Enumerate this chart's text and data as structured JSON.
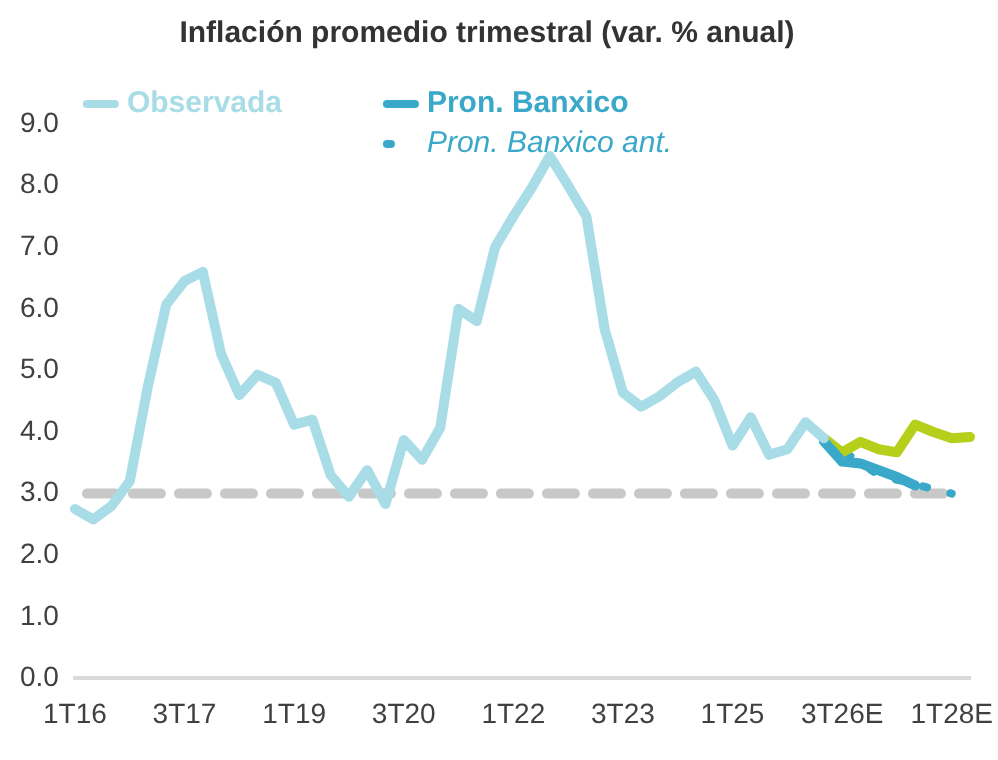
{
  "chart_data": {
    "type": "line",
    "title": "Inflación promedio trimestral (var. % anual)",
    "categories": [
      "1T16",
      null,
      null,
      null,
      null,
      null,
      "3T17",
      null,
      null,
      null,
      null,
      null,
      "1T19",
      null,
      null,
      null,
      null,
      null,
      "3T20",
      null,
      null,
      null,
      null,
      null,
      "1T22",
      null,
      null,
      null,
      null,
      null,
      "3T23",
      null,
      null,
      null,
      null,
      null,
      "1T25",
      null,
      null,
      null,
      null,
      null,
      "3T26E",
      null,
      null,
      null,
      null,
      null,
      "1T28E",
      null
    ],
    "ylim": [
      0,
      9
    ],
    "yticks": [
      {
        "value": 0,
        "label": "0.0"
      },
      {
        "value": 1,
        "label": "1.0"
      },
      {
        "value": 2,
        "label": "2.0"
      },
      {
        "value": 3,
        "label": "3.0"
      },
      {
        "value": 4,
        "label": "4.0"
      },
      {
        "value": 5,
        "label": "5.0"
      },
      {
        "value": 6,
        "label": "6.0"
      },
      {
        "value": 7,
        "label": "7.0"
      },
      {
        "value": 8,
        "label": "8.0"
      },
      {
        "value": 9,
        "label": "9.0"
      }
    ],
    "grid": false,
    "legend": "top left",
    "marker": "none",
    "series": [
      {
        "name": "Observada",
        "color": "#a8dce6",
        "line_style": "solid",
        "values": [
          2.75,
          2.58,
          2.8,
          3.2,
          4.75,
          6.07,
          6.45,
          6.6,
          5.27,
          4.6,
          4.93,
          4.8,
          4.12,
          4.2,
          3.3,
          2.95,
          3.38,
          2.83,
          3.87,
          3.55,
          4.07,
          6.0,
          5.8,
          7.0,
          7.5,
          7.96,
          8.48,
          8.0,
          7.5,
          5.67,
          4.64,
          4.41,
          4.58,
          4.81,
          4.98,
          4.52,
          3.78,
          4.24,
          3.63,
          3.72,
          4.16,
          3.9,
          null,
          null,
          null,
          null,
          null,
          null,
          null,
          null
        ]
      },
      {
        "name": "Pron. Banxico",
        "color": "#3aa8c8",
        "line_style": "solid",
        "values": [
          null,
          null,
          null,
          null,
          null,
          null,
          null,
          null,
          null,
          null,
          null,
          null,
          null,
          null,
          null,
          null,
          null,
          null,
          null,
          null,
          null,
          null,
          null,
          null,
          null,
          null,
          null,
          null,
          null,
          null,
          null,
          null,
          null,
          null,
          null,
          null,
          null,
          null,
          null,
          null,
          null,
          3.85,
          3.52,
          3.49,
          3.38,
          3.27,
          3.13,
          null,
          null,
          null
        ]
      },
      {
        "color": "#b5cf1a",
        "line_style": "solid",
        "values": [
          null,
          null,
          null,
          null,
          null,
          null,
          null,
          null,
          null,
          null,
          null,
          null,
          null,
          null,
          null,
          null,
          null,
          null,
          null,
          null,
          null,
          null,
          null,
          null,
          null,
          null,
          null,
          null,
          null,
          null,
          null,
          null,
          null,
          null,
          null,
          null,
          null,
          null,
          null,
          null,
          null,
          3.9,
          3.67,
          3.84,
          3.72,
          3.67,
          4.12,
          4.0,
          3.9,
          3.92
        ]
      },
      {
        "name": "Pron. Banxico ant.",
        "color": "#3aa8c8",
        "line_style": "dotted",
        "values": [
          null,
          null,
          null,
          null,
          null,
          null,
          null,
          null,
          null,
          null,
          null,
          null,
          null,
          null,
          null,
          null,
          null,
          null,
          null,
          null,
          null,
          null,
          null,
          null,
          null,
          null,
          null,
          null,
          null,
          null,
          null,
          null,
          null,
          null,
          null,
          null,
          null,
          null,
          null,
          null,
          null,
          3.9,
          null,
          null,
          3.3,
          null,
          null,
          null,
          3.0,
          null
        ]
      }
    ],
    "ref_lines": [
      {
        "axis": "y",
        "value": 3,
        "color": "#c8c8c8",
        "line_style": "dashed"
      }
    ]
  }
}
